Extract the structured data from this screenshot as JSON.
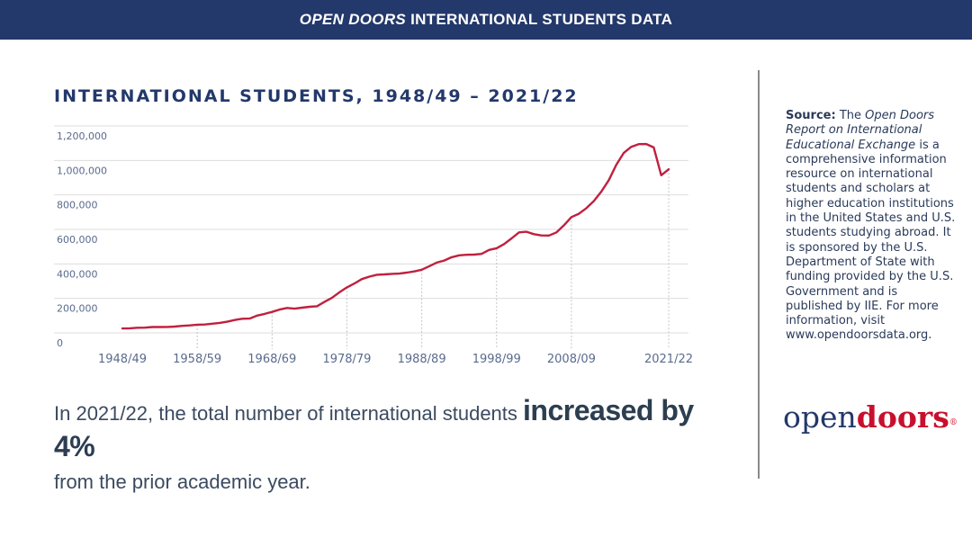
{
  "banner": {
    "part1": "OPEN DOORS",
    "part2": "INTERNATIONAL STUDENTS DATA"
  },
  "colors": {
    "navy": "#23386b",
    "line": "#c0203f",
    "grid": "#dddddd"
  },
  "chart_data": {
    "type": "line",
    "title": "INTERNATIONAL STUDENTS, 1948/49 – 2021/22",
    "xlabel": "",
    "ylabel": "",
    "ylim": [
      0,
      1200000
    ],
    "yticks": [
      0,
      200000,
      400000,
      600000,
      800000,
      1000000,
      1200000
    ],
    "ytick_labels": [
      "0",
      "200,000",
      "400,000",
      "600,000",
      "800,000",
      "1,000,000",
      "1,200,000"
    ],
    "xlim": [
      1948,
      2021
    ],
    "xticks": [
      1948,
      1958,
      1968,
      1978,
      1988,
      1998,
      2008,
      2021
    ],
    "xtick_labels": [
      "1948/49",
      "1958/59",
      "1968/69",
      "1978/79",
      "1988/89",
      "1998/99",
      "2008/09",
      "2021/22"
    ],
    "grid": true,
    "series": [
      {
        "name": "International students",
        "x": [
          1948,
          1949,
          1950,
          1951,
          1952,
          1953,
          1954,
          1955,
          1956,
          1957,
          1958,
          1959,
          1960,
          1961,
          1962,
          1963,
          1964,
          1965,
          1966,
          1967,
          1968,
          1969,
          1970,
          1971,
          1972,
          1973,
          1974,
          1975,
          1976,
          1977,
          1978,
          1979,
          1980,
          1981,
          1982,
          1983,
          1984,
          1985,
          1986,
          1987,
          1988,
          1989,
          1990,
          1991,
          1992,
          1993,
          1994,
          1995,
          1996,
          1997,
          1998,
          1999,
          2000,
          2001,
          2002,
          2003,
          2004,
          2005,
          2006,
          2007,
          2008,
          2009,
          2010,
          2011,
          2012,
          2013,
          2014,
          2015,
          2016,
          2017,
          2018,
          2019,
          2020,
          2021
        ],
        "values": [
          25464,
          26433,
          29813,
          30462,
          33675,
          33833,
          34232,
          36494,
          40666,
          43391,
          47245,
          48486,
          53107,
          58086,
          64705,
          74814,
          82045,
          82709,
          100262,
          110315,
          121362,
          134959,
          144708,
          140126,
          146097,
          151066,
          154580,
          179344,
          203068,
          235509,
          263940,
          286343,
          311880,
          326299,
          336985,
          338894,
          342113,
          343777,
          349609,
          356187,
          366354,
          386851,
          407529,
          419585,
          438618,
          449749,
          452635,
          453787,
          457984,
          481280,
          490933,
          514723,
          547867,
          582996,
          586323,
          572509,
          565039,
          564766,
          582984,
          623805,
          671616,
          690923,
          723277,
          764495,
          819644,
          886052,
          974926,
          1043839,
          1078822,
          1094792,
          1095299,
          1075496,
          914095,
          948519
        ]
      }
    ]
  },
  "headline": {
    "pre": "In 2021/22, the total number of international students",
    "emph": "increased by 4%",
    "post": "from the prior academic year."
  },
  "source": {
    "label": "Source:",
    "pre": "The",
    "title": "Open Doors Report on International Educational Exchange",
    "body": "is a comprehensive information resource on international students and scholars at higher education institutions in the United States and U.S. students studying abroad. It is sponsored by the U.S. Department of State with funding provided by the U.S. Government and is published by IIE. For more information, visit www.opendoorsdata.org."
  },
  "logo": {
    "open": "open",
    "doors": "doors",
    "mark": "®"
  }
}
